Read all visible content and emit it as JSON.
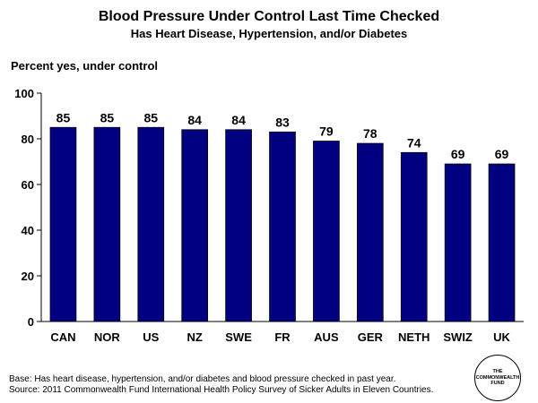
{
  "header": {
    "title": "Blood Pressure Under Control Last Time Checked",
    "subtitle": "Has Heart Disease, Hypertension, and/or Diabetes"
  },
  "chart_data": {
    "type": "bar",
    "title": "Blood Pressure Under Control Last Time Checked",
    "subtitle": "Has Heart Disease, Hypertension, and/or Diabetes",
    "ylabel": "Percent yes, under control",
    "xlabel": "",
    "categories": [
      "CAN",
      "NOR",
      "US",
      "NZ",
      "SWE",
      "FR",
      "AUS",
      "GER",
      "NETH",
      "SWIZ",
      "UK"
    ],
    "values": [
      85,
      85,
      85,
      84,
      84,
      83,
      79,
      78,
      74,
      69,
      69
    ],
    "ylim": [
      0,
      100
    ],
    "yticks": [
      0,
      20,
      40,
      60,
      80,
      100
    ],
    "grid": false,
    "legend": "none",
    "bar_color": "#000080"
  },
  "footnotes": {
    "base": "Base: Has heart disease, hypertension, and/or diabetes and blood pressure checked in past year.",
    "source": "Source: 2011 Commonwealth Fund International Health Policy Survey of Sicker Adults in Eleven Countries."
  },
  "logo": {
    "text": "THE COMMONWEALTH FUND"
  }
}
